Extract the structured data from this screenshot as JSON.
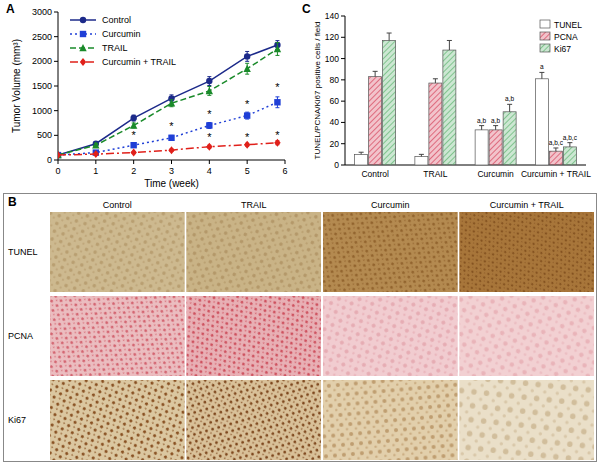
{
  "chart_data": [
    {
      "type": "line",
      "title": "A",
      "x_label": "Time (week)",
      "y_label": "Tumor Volume (mm³)",
      "x": [
        0,
        1,
        2,
        3,
        4,
        5,
        5.8
      ],
      "xlim": [
        0,
        6
      ],
      "xticks": [
        0,
        1,
        2,
        3,
        4,
        5,
        6
      ],
      "ylim": [
        0,
        3000
      ],
      "yticks": [
        0,
        500,
        1000,
        1500,
        2000,
        2500,
        3000
      ],
      "legend": "top-left",
      "series": [
        {
          "name": "Control",
          "color": "#1c2a8a",
          "marker": "circle",
          "line_style": "solid",
          "values": [
            100,
            330,
            850,
            1250,
            1600,
            2100,
            2330
          ],
          "errors": [
            20,
            40,
            60,
            70,
            90,
            100,
            90
          ]
        },
        {
          "name": "Curcumin",
          "color": "#1f3fd6",
          "marker": "square",
          "line_style": "dotted",
          "values": [
            100,
            150,
            300,
            450,
            700,
            900,
            1170
          ],
          "errors": [
            10,
            20,
            40,
            50,
            60,
            70,
            110
          ]
        },
        {
          "name": "TRAIL",
          "color": "#1a8a2a",
          "marker": "triangle",
          "line_style": "dashed",
          "values": [
            100,
            300,
            700,
            1150,
            1400,
            1850,
            2250
          ],
          "errors": [
            20,
            40,
            50,
            70,
            90,
            110,
            130
          ]
        },
        {
          "name": "Curcumin + TRAIL",
          "color": "#e0201a",
          "marker": "diamond",
          "line_style": "dashdot",
          "values": [
            100,
            120,
            150,
            200,
            270,
            310,
            350
          ],
          "errors": [
            10,
            15,
            20,
            25,
            30,
            30,
            40
          ]
        }
      ],
      "annotations": [
        {
          "text": "*",
          "x": 2,
          "y": 520
        },
        {
          "text": "*",
          "x": 3,
          "y": 700
        },
        {
          "text": "*",
          "x": 4,
          "y": 950
        },
        {
          "text": "*",
          "x": 4,
          "y": 480
        },
        {
          "text": "*",
          "x": 5,
          "y": 1150
        },
        {
          "text": "*",
          "x": 5,
          "y": 480
        },
        {
          "text": "*",
          "x": 5.8,
          "y": 1500
        },
        {
          "text": "*",
          "x": 5.8,
          "y": 520
        }
      ]
    },
    {
      "type": "bar",
      "title": "C",
      "y_label": "TUNEL/PCNA/Ki67 positive cells / field",
      "categories": [
        "Control",
        "TRAIL",
        "Curcumin",
        "Curcumin + TRAIL"
      ],
      "ylim": [
        0,
        140
      ],
      "yticks": [
        0,
        20,
        40,
        60,
        80,
        100,
        120,
        140
      ],
      "legend": "top-right",
      "series": [
        {
          "name": "TUNEL",
          "color": "#ffffff",
          "values": [
            10,
            8,
            33,
            81
          ],
          "errors": [
            2,
            2,
            4,
            6
          ]
        },
        {
          "name": "PCNA",
          "color": "#d9546a",
          "values": [
            83,
            77,
            33,
            13
          ],
          "errors": [
            5,
            4,
            4,
            3
          ]
        },
        {
          "name": "Ki67",
          "color": "#6dbb7e",
          "values": [
            117,
            108,
            50,
            17
          ],
          "errors": [
            7,
            9,
            7,
            4
          ]
        }
      ],
      "annotations": [
        {
          "text": "a,b",
          "x": 2,
          "series": 0
        },
        {
          "text": "a,b",
          "x": 2,
          "series": 1
        },
        {
          "text": "a,b",
          "x": 2,
          "series": 2
        },
        {
          "text": "a",
          "x": 3,
          "series": 0
        },
        {
          "text": "a,b,c",
          "x": 3,
          "series": 1
        },
        {
          "text": "a,b,c",
          "x": 3,
          "series": 2
        }
      ]
    }
  ],
  "image_panel": {
    "label": "B",
    "columns": [
      "Control",
      "TRAIL",
      "Curcumin",
      "Curcumin + TRAIL"
    ],
    "rows": [
      "TUNEL",
      "PCNA",
      "Ki67"
    ]
  }
}
